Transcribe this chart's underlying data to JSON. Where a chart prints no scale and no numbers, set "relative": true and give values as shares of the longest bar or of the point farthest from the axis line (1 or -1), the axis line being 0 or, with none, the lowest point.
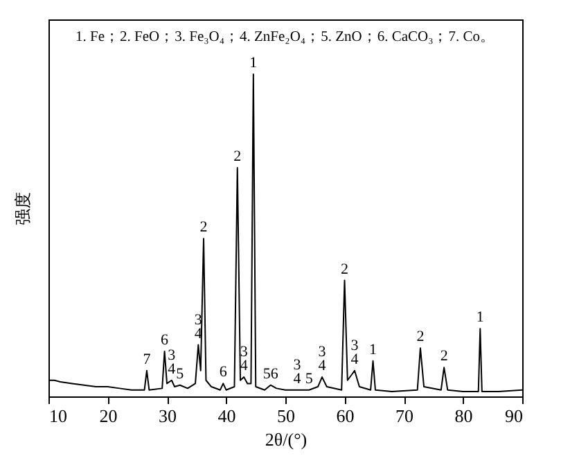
{
  "chart_data": {
    "type": "line",
    "title": "1. Fe；2. FeO；3. Fe₃O₄；4. ZnFe₂O₄；5. ZnO；6. CaCO₃；7. Co。",
    "xlabel": "2θ/(°)",
    "ylabel": "强度",
    "relative": true,
    "xlim": [
      10,
      90
    ],
    "xticks": [
      10,
      20,
      30,
      40,
      50,
      60,
      70,
      80,
      90
    ],
    "grid": false,
    "marker": "none",
    "line_style": "solid",
    "series": [
      {
        "color": "#000000",
        "x": [
          10,
          11,
          12,
          14,
          16,
          18,
          20,
          22,
          24,
          26.2,
          26.6,
          27.0,
          29.2,
          29.6,
          30.0,
          30.8,
          31.3,
          32.2,
          33.5,
          34.8,
          35.3,
          35.7,
          36.2,
          36.6,
          37.5,
          39.0,
          39.5,
          40.0,
          41.4,
          41.9,
          42.4,
          43.0,
          43.6,
          44.2,
          44.6,
          45.0,
          46.5,
          47.5,
          48.5,
          50,
          52,
          54,
          55.5,
          56.2,
          57,
          59.5,
          60.0,
          60.5,
          61.7,
          62.5,
          64.4,
          64.8,
          65.2,
          68,
          72.3,
          72.8,
          73.4,
          76.3,
          76.8,
          77.4,
          80,
          82.6,
          82.9,
          83.2,
          86,
          90
        ],
        "values": [
          0.05,
          0.05,
          0.045,
          0.04,
          0.035,
          0.03,
          0.03,
          0.025,
          0.02,
          0.02,
          0.08,
          0.02,
          0.025,
          0.14,
          0.04,
          0.05,
          0.03,
          0.035,
          0.025,
          0.04,
          0.16,
          0.08,
          0.49,
          0.05,
          0.03,
          0.02,
          0.04,
          0.02,
          0.03,
          0.71,
          0.05,
          0.06,
          0.04,
          0.04,
          1,
          0.03,
          0.02,
          0.035,
          0.025,
          0.02,
          0.02,
          0.02,
          0.03,
          0.06,
          0.03,
          0.02,
          0.36,
          0.05,
          0.08,
          0.03,
          0.02,
          0.11,
          0.02,
          0.015,
          0.02,
          0.15,
          0.03,
          0.02,
          0.09,
          0.02,
          0.015,
          0.015,
          0.21,
          0.015,
          0.015,
          0.02
        ]
      }
    ],
    "annotations": [
      {
        "text": "7",
        "x": 26.6,
        "y": 0.08
      },
      {
        "text": "6",
        "x": 29.6,
        "y": 0.14
      },
      {
        "text": "3\n4",
        "x": 30.8,
        "y": 0.05
      },
      {
        "text": "5",
        "x": 32.2,
        "y": 0.035
      },
      {
        "text": "3\n4",
        "x": 35.3,
        "y": 0.16
      },
      {
        "text": "2",
        "x": 36.2,
        "y": 0.49
      },
      {
        "text": "6",
        "x": 39.5,
        "y": 0.04
      },
      {
        "text": "2",
        "x": 41.9,
        "y": 0.71
      },
      {
        "text": "3\n4",
        "x": 43.0,
        "y": 0.06
      },
      {
        "text": "1",
        "x": 44.6,
        "y": 1
      },
      {
        "text": "56",
        "x": 47.5,
        "y": 0.035
      },
      {
        "text": "3\n4",
        "x": 52,
        "y": 0.02
      },
      {
        "text": "5",
        "x": 54,
        "y": 0.02
      },
      {
        "text": "3\n4",
        "x": 56.2,
        "y": 0.06
      },
      {
        "text": "2",
        "x": 60.0,
        "y": 0.36
      },
      {
        "text": "3\n4",
        "x": 61.7,
        "y": 0.08
      },
      {
        "text": "1",
        "x": 64.8,
        "y": 0.11
      },
      {
        "text": "2",
        "x": 72.8,
        "y": 0.15
      },
      {
        "text": "2",
        "x": 76.8,
        "y": 0.09
      },
      {
        "text": "1",
        "x": 82.9,
        "y": 0.21
      }
    ]
  }
}
